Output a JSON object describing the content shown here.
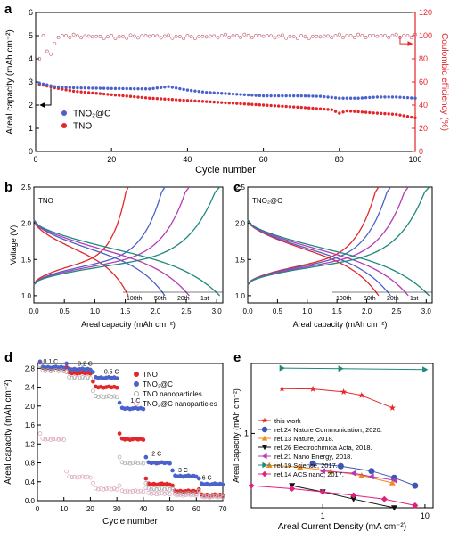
{
  "figure": {
    "panels": {
      "a": {
        "letter": "a"
      },
      "b": {
        "letter": "b"
      },
      "c": {
        "letter": "c"
      },
      "d": {
        "letter": "d"
      },
      "e": {
        "letter": "e"
      }
    }
  },
  "chart_data": [
    {
      "panel": "a",
      "type": "line",
      "xlabel": "Cycle number",
      "ylabel": "Areal capacity (mAh cm⁻²)",
      "ylabel_right": "Coulombic efficiency (%)",
      "xlim": [
        0,
        100
      ],
      "ylim": [
        0,
        6
      ],
      "ylim_right": [
        0,
        120
      ],
      "xticks": [
        "0",
        "20",
        "40",
        "60",
        "80",
        "100"
      ],
      "yticks": [
        "0",
        "1",
        "2",
        "3",
        "4",
        "5",
        "6"
      ],
      "yticks_right": [
        "0",
        "20",
        "40",
        "60",
        "80",
        "100",
        "120"
      ],
      "legend": [
        "TNO₂@C",
        "TNO"
      ],
      "legend_position": "lower-left",
      "colors": {
        "tnoc": "#4a62c9",
        "tno": "#e3262a",
        "ce": "#c05a6e",
        "right_axis": "#e3262a"
      },
      "series": [
        {
          "name": "TNO₂@C",
          "color": "#4a62c9",
          "x": [
            1,
            5,
            10,
            20,
            30,
            35,
            40,
            45,
            50,
            55,
            60,
            65,
            70,
            75,
            80,
            85,
            90,
            95,
            100
          ],
          "values": [
            2.95,
            2.8,
            2.75,
            2.72,
            2.7,
            2.8,
            2.65,
            2.55,
            2.5,
            2.45,
            2.4,
            2.4,
            2.4,
            2.38,
            2.3,
            2.3,
            2.35,
            2.35,
            2.3
          ]
        },
        {
          "name": "TNO",
          "color": "#e3262a",
          "x": [
            1,
            5,
            10,
            20,
            30,
            40,
            50,
            60,
            70,
            78,
            80,
            82,
            90,
            95,
            100
          ],
          "values": [
            2.9,
            2.75,
            2.6,
            2.45,
            2.3,
            2.2,
            2.1,
            2.0,
            1.9,
            1.8,
            1.65,
            1.75,
            1.65,
            1.6,
            1.45
          ]
        },
        {
          "name": "Coulombic efficiency",
          "color": "#c05a6e",
          "axis": "right",
          "x": [
            1,
            2,
            3,
            4,
            6,
            10,
            20,
            30,
            40,
            50,
            60,
            70,
            80,
            90,
            100
          ],
          "values": [
            80,
            100,
            88,
            84,
            100,
            100,
            99,
            100,
            99,
            100,
            100,
            99,
            100,
            100,
            100
          ]
        }
      ]
    },
    {
      "panel": "b",
      "type": "line",
      "xlabel": "Areal capacity (mAh cm⁻²)",
      "ylabel": "Voltage (V)",
      "title": "TNO",
      "xlim": [
        0,
        3.1
      ],
      "ylim": [
        0.9,
        2.5
      ],
      "xticks": [
        "0.0",
        "0.5",
        "1.0",
        "1.5",
        "2.0",
        "2.5",
        "3.0"
      ],
      "yticks": [
        "1.0",
        "1.5",
        "2.0",
        "2.5"
      ],
      "cycle_labels": [
        "100th",
        "50th",
        "20th",
        "1st"
      ],
      "series": [
        {
          "name": "100th",
          "color": "#e3262a",
          "capacity": 1.55
        },
        {
          "name": "50th",
          "color": "#4a62c9",
          "capacity": 2.15
        },
        {
          "name": "20th",
          "color": "#b53bb5",
          "capacity": 2.55
        },
        {
          "name": "1st",
          "color": "#1e8a7c",
          "capacity": 3.05
        }
      ]
    },
    {
      "panel": "c",
      "type": "line",
      "xlabel": "Areal capacity (mAh cm⁻²)",
      "ylabel": "Voltage (V)",
      "title": "TNO₂@C",
      "xlim": [
        0,
        3.1
      ],
      "ylim": [
        0.9,
        2.5
      ],
      "xticks": [
        "0.0",
        "0.5",
        "1.0",
        "1.5",
        "2.0",
        "2.5",
        "3.0"
      ],
      "yticks": [
        "1.0",
        "1.5",
        "2.0",
        "2.5"
      ],
      "cycle_labels": [
        "100th",
        "50th",
        "20th",
        "1st"
      ],
      "series": [
        {
          "name": "100th",
          "color": "#e3262a",
          "capacity": 2.2
        },
        {
          "name": "50th",
          "color": "#4a62c9",
          "capacity": 2.4
        },
        {
          "name": "20th",
          "color": "#b53bb5",
          "capacity": 2.7
        },
        {
          "name": "1st",
          "color": "#1e8a7c",
          "capacity": 3.05
        }
      ]
    },
    {
      "panel": "d",
      "type": "scatter",
      "xlabel": "Cycle number",
      "ylabel": "Areal capacity (mAh cm⁻²)",
      "xlim": [
        0,
        70
      ],
      "ylim": [
        0,
        2.9
      ],
      "xticks": [
        "0",
        "10",
        "20",
        "30",
        "40",
        "50",
        "60",
        "70"
      ],
      "yticks": [
        "0.0",
        "0.4",
        "0.8",
        "1.2",
        "1.6",
        "2.0",
        "2.4",
        "2.8"
      ],
      "rate_labels": [
        "0.1 C",
        "0.2 C",
        "0.5 C",
        "1 C",
        "2 C",
        "3 C",
        "6 C"
      ],
      "legend": [
        "TNO",
        "TNO₂@C",
        "TNO nanoparticles",
        "TNO₂@C nanoparticles"
      ],
      "legend_position": "top-right",
      "series": [
        {
          "name": "TNO",
          "color": "#e3262a",
          "filled": true,
          "steps": [
            [
              1,
              10,
              2.8
            ],
            [
              11,
              20,
              2.7
            ],
            [
              21,
              30,
              2.4
            ],
            [
              31,
              40,
              1.3
            ],
            [
              41,
              50,
              0.35
            ],
            [
              51,
              60,
              0.2
            ],
            [
              61,
              70,
              0.12
            ]
          ]
        },
        {
          "name": "TNO₂@C",
          "color": "#4a62c9",
          "filled": true,
          "steps": [
            [
              1,
              10,
              2.82
            ],
            [
              11,
              20,
              2.78
            ],
            [
              21,
              30,
              2.6
            ],
            [
              31,
              40,
              1.95
            ],
            [
              41,
              50,
              0.8
            ],
            [
              51,
              60,
              0.52
            ],
            [
              61,
              70,
              0.35
            ]
          ]
        },
        {
          "name": "TNO nanoparticles",
          "color": "#a8a8a8",
          "filled": false,
          "steps": [
            [
              1,
              10,
              2.75
            ],
            [
              11,
              20,
              2.6
            ],
            [
              21,
              30,
              2.2
            ],
            [
              31,
              40,
              0.8
            ],
            [
              41,
              50,
              0.25
            ],
            [
              51,
              60,
              0.15
            ],
            [
              61,
              70,
              0.1
            ]
          ]
        },
        {
          "name": "TNO₂@C nanoparticles",
          "color": "#d9a3bb",
          "filled": false,
          "steps": [
            [
              1,
              10,
              1.3
            ],
            [
              11,
              20,
              0.5
            ],
            [
              21,
              30,
              0.25
            ],
            [
              31,
              40,
              0.2
            ],
            [
              41,
              50,
              0.15
            ],
            [
              51,
              60,
              0.12
            ],
            [
              61,
              70,
              0.08
            ]
          ]
        }
      ]
    },
    {
      "panel": "e",
      "type": "line",
      "xlabel": "Areal Current Density (mA cm⁻²)",
      "ylabel": "Areal capacity (mAh cm⁻²)",
      "xscale": "log",
      "yscale": "log",
      "xlim": [
        0.2,
        12
      ],
      "ylim": [
        0.18,
        5
      ],
      "xticks": [
        "1",
        "10"
      ],
      "yticks": [
        "1"
      ],
      "legend_position": "left",
      "series": [
        {
          "name": "this work",
          "color": "#e3262a",
          "marker": "star",
          "x": [
            0.4,
            0.8,
            1.6,
            2.4,
            4.8
          ],
          "values": [
            2.8,
            2.78,
            2.6,
            2.4,
            1.8
          ]
        },
        {
          "name": "ref.24 Nature Communication, 2020.",
          "color": "#3d55b5",
          "marker": "circle",
          "x": [
            0.8,
            1.5,
            3,
            5,
            8
          ],
          "values": [
            0.5,
            0.47,
            0.42,
            0.36,
            0.3
          ]
        },
        {
          "name": "ref.13 Nature, 2018.",
          "color": "#f28a1c",
          "marker": "triangle-up",
          "x": [
            0.3,
            0.6,
            1.2,
            2.4,
            4.8
          ],
          "values": [
            0.48,
            0.46,
            0.42,
            0.38,
            0.32
          ]
        },
        {
          "name": "ref.26 Electrochimica Acta, 2018.",
          "color": "#111111",
          "marker": "triangle-down",
          "x": [
            0.5,
            1,
            2,
            5
          ],
          "values": [
            0.3,
            0.26,
            0.22,
            0.18
          ]
        },
        {
          "name": "ref.21 Nano Energy, 2018.",
          "color": "#b53bb5",
          "marker": "triangle-left",
          "x": [
            1,
            2,
            3,
            5
          ],
          "values": [
            0.42,
            0.4,
            0.37,
            0.34
          ]
        },
        {
          "name": "ref.19 Science, 2017.",
          "color": "#1e8a7c",
          "marker": "triangle-right",
          "x": [
            0.4,
            1.5,
            10
          ],
          "values": [
            4.5,
            4.45,
            4.35
          ]
        },
        {
          "name": "ref.14 ACS nano, 2017.",
          "color": "#e0207f",
          "marker": "diamond",
          "x": [
            0.2,
            0.5,
            1,
            2,
            4,
            8
          ],
          "values": [
            0.3,
            0.28,
            0.26,
            0.24,
            0.22,
            0.19
          ]
        }
      ]
    }
  ]
}
